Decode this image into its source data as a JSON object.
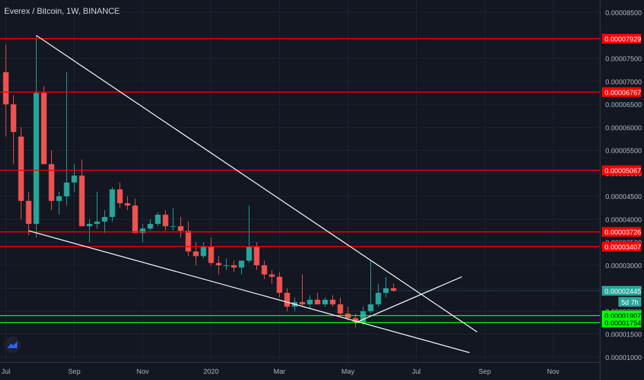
{
  "header": {
    "title": "Everex / Bitcoin, 1W, BINANCE"
  },
  "price_axis": {
    "ticks": [
      "0.00008500",
      "0.00007500",
      "0.00007000",
      "0.00006500",
      "0.00006000",
      "0.00005500",
      "0.00005000",
      "0.00004500",
      "0.00004000",
      "0.00003500",
      "0.00003000",
      "0.00002500",
      "0.00002000",
      "0.00001500",
      "0.00001000"
    ]
  },
  "time_axis": {
    "labels": [
      {
        "text": "Jul",
        "i": 0
      },
      {
        "text": "Sep",
        "i": 9
      },
      {
        "text": "Nov",
        "i": 18
      },
      {
        "text": "2020",
        "i": 27
      },
      {
        "text": "Mar",
        "i": 36
      },
      {
        "text": "May",
        "i": 45
      },
      {
        "text": "Jul",
        "i": 54
      },
      {
        "text": "Sep",
        "i": 63
      },
      {
        "text": "Nov",
        "i": 72
      }
    ]
  },
  "colors": {
    "up": "#26a69a",
    "down": "#ef5350",
    "resistance": "#ff0000",
    "support": "#00ff00",
    "trend": "#ffffff",
    "current": "#26a69a",
    "background": "#131722"
  },
  "chart_data": {
    "type": "candlestick",
    "title": "Everex / Bitcoin, 1W, BINANCE",
    "ylim": [
      9e-06,
      8.75e-05
    ],
    "candles": [
      {
        "o": 7.2e-05,
        "h": 7.8e-05,
        "l": 5.8e-05,
        "c": 6.5e-05
      },
      {
        "o": 6.5e-05,
        "h": 6.7e-05,
        "l": 5.2e-05,
        "c": 5.9e-05
      },
      {
        "o": 5.8e-05,
        "h": 6e-05,
        "l": 4e-05,
        "c": 4.4e-05
      },
      {
        "o": 4.4e-05,
        "h": 4.6e-05,
        "l": 3.65e-05,
        "c": 3.9e-05
      },
      {
        "o": 3.9e-05,
        "h": 8e-05,
        "l": 3.6e-05,
        "c": 6.75e-05
      },
      {
        "o": 6.75e-05,
        "h": 6.9e-05,
        "l": 5.2e-05,
        "c": 5.2e-05
      },
      {
        "o": 5.2e-05,
        "h": 5.5e-05,
        "l": 4.2e-05,
        "c": 4.4e-05
      },
      {
        "o": 4.4e-05,
        "h": 4.6e-05,
        "l": 4.1e-05,
        "c": 4.5e-05
      },
      {
        "o": 4.5e-05,
        "h": 7.2e-05,
        "l": 4.3e-05,
        "c": 4.8e-05
      },
      {
        "o": 4.8e-05,
        "h": 5.2e-05,
        "l": 4.6e-05,
        "c": 4.95e-05
      },
      {
        "o": 4.95e-05,
        "h": 5.3e-05,
        "l": 3.85e-05,
        "c": 3.85e-05
      },
      {
        "o": 3.85e-05,
        "h": 4e-05,
        "l": 3.5e-05,
        "c": 3.9e-05
      },
      {
        "o": 3.9e-05,
        "h": 4.6e-05,
        "l": 3.8e-05,
        "c": 3.95e-05
      },
      {
        "o": 3.95e-05,
        "h": 4.2e-05,
        "l": 3.7e-05,
        "c": 4.05e-05
      },
      {
        "o": 4.05e-05,
        "h": 4.7e-05,
        "l": 3.95e-05,
        "c": 4.65e-05
      },
      {
        "o": 4.65e-05,
        "h": 4.8e-05,
        "l": 4.25e-05,
        "c": 4.35e-05
      },
      {
        "o": 4.35e-05,
        "h": 4.5e-05,
        "l": 4.2e-05,
        "c": 4.3e-05
      },
      {
        "o": 4.3e-05,
        "h": 4.45e-05,
        "l": 3.7e-05,
        "c": 3.7e-05
      },
      {
        "o": 3.7e-05,
        "h": 3.9e-05,
        "l": 3.5e-05,
        "c": 3.8e-05
      },
      {
        "o": 3.8e-05,
        "h": 4e-05,
        "l": 3.75e-05,
        "c": 3.9e-05
      },
      {
        "o": 3.9e-05,
        "h": 4.15e-05,
        "l": 3.85e-05,
        "c": 4.1e-05
      },
      {
        "o": 4.1e-05,
        "h": 4.2e-05,
        "l": 3.75e-05,
        "c": 3.85e-05
      },
      {
        "o": 3.85e-05,
        "h": 4.25e-05,
        "l": 3.75e-05,
        "c": 3.85e-05
      },
      {
        "o": 3.85e-05,
        "h": 4.05e-05,
        "l": 3.6e-05,
        "c": 3.75e-05
      },
      {
        "o": 3.75e-05,
        "h": 3.95e-05,
        "l": 3.2e-05,
        "c": 3.3e-05
      },
      {
        "o": 3.3e-05,
        "h": 3.5e-05,
        "l": 3e-05,
        "c": 3.2e-05
      },
      {
        "o": 3.2e-05,
        "h": 3.5e-05,
        "l": 3.15e-05,
        "c": 3.4e-05
      },
      {
        "o": 3.4e-05,
        "h": 3.6e-05,
        "l": 3e-05,
        "c": 3.05e-05
      },
      {
        "o": 3.05e-05,
        "h": 3.2e-05,
        "l": 2.8e-05,
        "c": 3e-05
      },
      {
        "o": 3e-05,
        "h": 3.15e-05,
        "l": 2.9e-05,
        "c": 3e-05
      },
      {
        "o": 3e-05,
        "h": 3.1e-05,
        "l": 2.85e-05,
        "c": 2.95e-05
      },
      {
        "o": 2.95e-05,
        "h": 3.1e-05,
        "l": 2.8e-05,
        "c": 3.1e-05
      },
      {
        "o": 3.1e-05,
        "h": 4.3e-05,
        "l": 3.05e-05,
        "c": 3.4e-05
      },
      {
        "o": 3.4e-05,
        "h": 3.5e-05,
        "l": 2.9e-05,
        "c": 3e-05
      },
      {
        "o": 3e-05,
        "h": 3.1e-05,
        "l": 2.7e-05,
        "c": 2.8e-05
      },
      {
        "o": 2.8e-05,
        "h": 2.9e-05,
        "l": 2.6e-05,
        "c": 2.75e-05
      },
      {
        "o": 2.75e-05,
        "h": 2.85e-05,
        "l": 2.3e-05,
        "c": 2.4e-05
      },
      {
        "o": 2.4e-05,
        "h": 2.5e-05,
        "l": 2e-05,
        "c": 2.1e-05
      },
      {
        "o": 2.1e-05,
        "h": 2.3e-05,
        "l": 2e-05,
        "c": 2.2e-05
      },
      {
        "o": 2.2e-05,
        "h": 2.8e-05,
        "l": 2.1e-05,
        "c": 2.15e-05
      },
      {
        "o": 2.15e-05,
        "h": 2.35e-05,
        "l": 2.05e-05,
        "c": 2.25e-05
      },
      {
        "o": 2.25e-05,
        "h": 2.4e-05,
        "l": 2.15e-05,
        "c": 2.15e-05
      },
      {
        "o": 2.15e-05,
        "h": 2.3e-05,
        "l": 2.1e-05,
        "c": 2.25e-05
      },
      {
        "o": 2.25e-05,
        "h": 2.35e-05,
        "l": 2.1e-05,
        "c": 2.15e-05
      },
      {
        "o": 2.15e-05,
        "h": 2.3e-05,
        "l": 1.9e-05,
        "c": 1.95e-05
      },
      {
        "o": 1.95e-05,
        "h": 2.1e-05,
        "l": 1.8e-05,
        "c": 1.85e-05
      },
      {
        "o": 1.85e-05,
        "h": 1.95e-05,
        "l": 1.65e-05,
        "c": 1.75e-05
      },
      {
        "o": 1.75e-05,
        "h": 2.1e-05,
        "l": 1.7e-05,
        "c": 2e-05
      },
      {
        "o": 2e-05,
        "h": 3.1e-05,
        "l": 1.95e-05,
        "c": 2.15e-05
      },
      {
        "o": 2.15e-05,
        "h": 2.6e-05,
        "l": 2.1e-05,
        "c": 2.4e-05
      },
      {
        "o": 2.4e-05,
        "h": 2.75e-05,
        "l": 2.3e-05,
        "c": 2.5e-05
      },
      {
        "o": 2.5e-05,
        "h": 2.6e-05,
        "l": 2.42e-05,
        "c": 2.445e-05
      }
    ],
    "horizontal_levels": [
      {
        "price": 7.929e-05,
        "label": "0.00007929",
        "kind": "resistance"
      },
      {
        "price": 6.767e-05,
        "label": "0.00006767",
        "kind": "resistance"
      },
      {
        "price": 5.067e-05,
        "label": "0.00005067",
        "kind": "resistance"
      },
      {
        "price": 3.726e-05,
        "label": "0.00003726",
        "kind": "resistance"
      },
      {
        "price": 3.407e-05,
        "label": "0.00003407",
        "kind": "resistance"
      },
      {
        "price": 1.907e-05,
        "label": "0.00001907",
        "kind": "support"
      },
      {
        "price": 1.754e-05,
        "label": "0.00001754",
        "kind": "support"
      }
    ],
    "current_price": {
      "price": 2.445e-05,
      "label": "0.00002445",
      "countdown": "5d 7h"
    },
    "trendlines": [
      {
        "from": {
          "i": 4,
          "price": 8e-05
        },
        "to": {
          "i": 62,
          "price": 1.55e-05
        }
      },
      {
        "from": {
          "i": 3,
          "price": 3.75e-05
        },
        "to": {
          "i": 61,
          "price": 1.1e-05
        }
      },
      {
        "from": {
          "i": 46,
          "price": 1.75e-05
        },
        "to": {
          "i": 60,
          "price": 2.75e-05
        }
      }
    ]
  }
}
